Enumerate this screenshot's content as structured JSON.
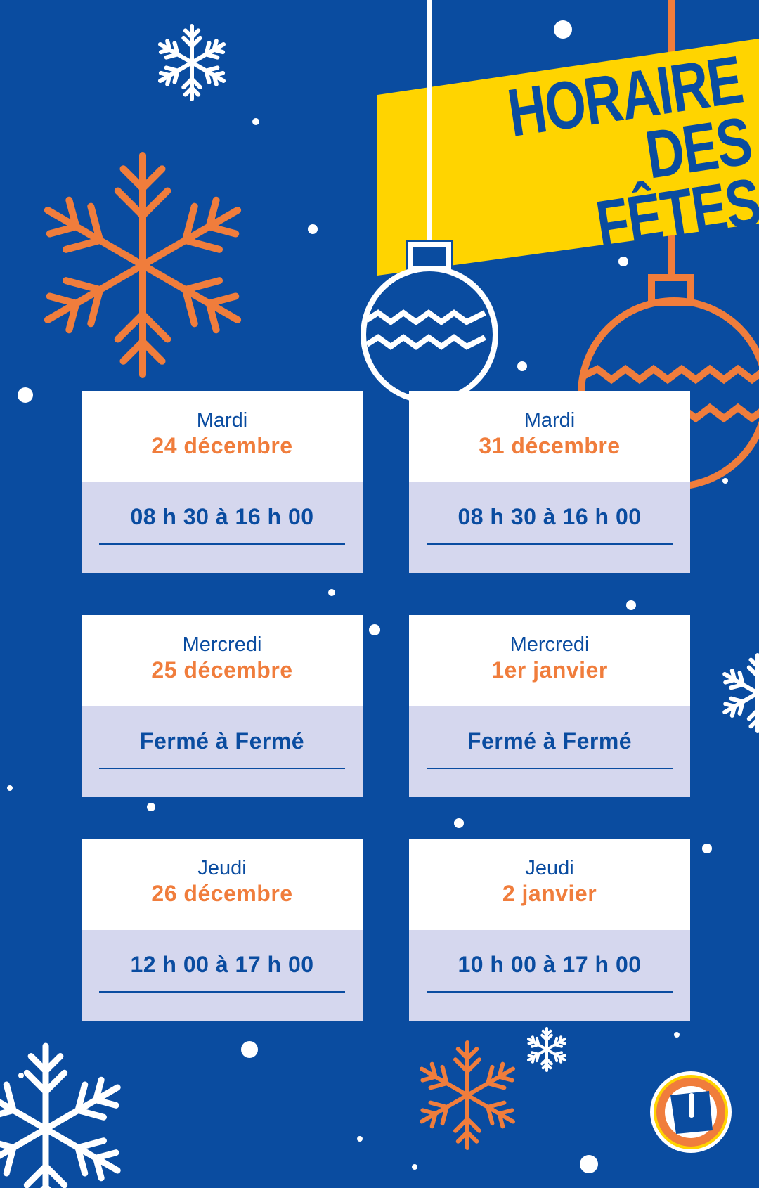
{
  "header": {
    "title_line1": "HORAIRE",
    "title_line2": "DES FÊTES"
  },
  "colors": {
    "background": "#0a4ca0",
    "accent_orange": "#f07d3c",
    "banner_yellow": "#ffd400",
    "card_bottom": "#d5d7ee"
  },
  "schedule": [
    {
      "day": "Mardi",
      "date": "24 décembre",
      "hours": "08 h 30 à 16 h 00"
    },
    {
      "day": "Mardi",
      "date": "31 décembre",
      "hours": "08 h 30 à 16 h 00"
    },
    {
      "day": "Mercredi",
      "date": "25 décembre",
      "hours": "Fermé à Fermé"
    },
    {
      "day": "Mercredi",
      "date": "1er janvier",
      "hours": "Fermé à Fermé"
    },
    {
      "day": "Jeudi",
      "date": "26 décembre",
      "hours": "12 h 00 à 17 h 00"
    },
    {
      "day": "Jeudi",
      "date": "2 janvier",
      "hours": "10 h 00 à 17 h 00"
    }
  ],
  "logo": {
    "letter": "U"
  }
}
